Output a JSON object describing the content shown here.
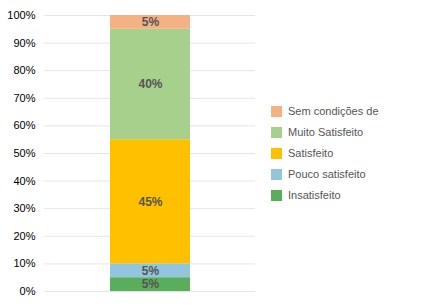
{
  "chart_data": {
    "type": "bar",
    "stacked": true,
    "categories": [
      null
    ],
    "series": [
      {
        "name": "Insatisfeito",
        "color": "#5aad5a",
        "values": [
          5
        ],
        "value_labels": [
          "5%"
        ]
      },
      {
        "name": "Pouco satisfeito",
        "color": "#92c5de",
        "values": [
          5
        ],
        "value_labels": [
          "5%"
        ]
      },
      {
        "name": "Satisfeito",
        "color": "#ffc000",
        "values": [
          45
        ],
        "value_labels": [
          "45%"
        ]
      },
      {
        "name": "Muito Satisfeito",
        "color": "#a8d08d",
        "values": [
          40
        ],
        "value_labels": [
          "40%"
        ]
      },
      {
        "name": "Sem condições de",
        "color": "#f4b183",
        "values": [
          5
        ],
        "value_labels": [
          "5%"
        ]
      }
    ],
    "ylim": [
      0,
      100
    ],
    "yticks": [
      {
        "value": 0,
        "label": "0%"
      },
      {
        "value": 10,
        "label": "10%"
      },
      {
        "value": 20,
        "label": "20%"
      },
      {
        "value": 30,
        "label": "30%"
      },
      {
        "value": 40,
        "label": "40%"
      },
      {
        "value": 50,
        "label": "50%"
      },
      {
        "value": 60,
        "label": "60%"
      },
      {
        "value": 70,
        "label": "70%"
      },
      {
        "value": 80,
        "label": "80%"
      },
      {
        "value": 90,
        "label": "90%"
      },
      {
        "value": 100,
        "label": "100%"
      }
    ],
    "grid": true,
    "data_labels": true,
    "legend": "right",
    "tick_labels": "y"
  }
}
